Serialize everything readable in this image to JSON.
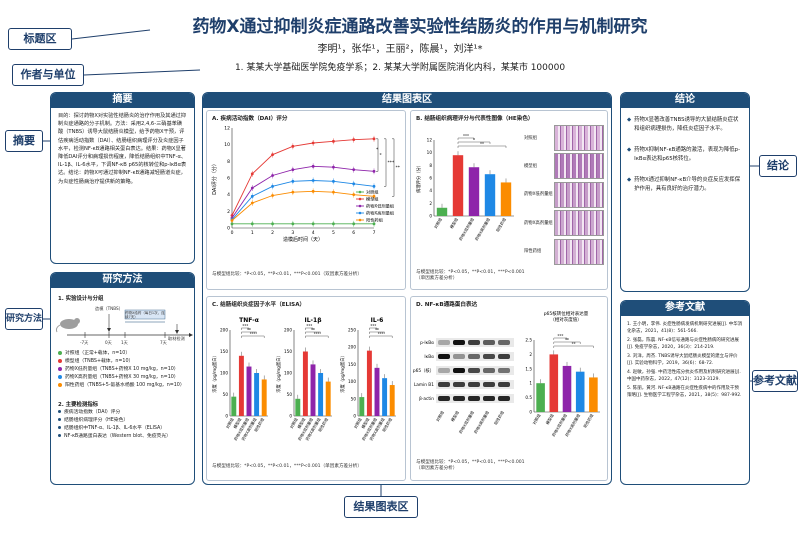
{
  "callouts": {
    "title_area": "标题区",
    "authors_area": "作者与单位",
    "abstract": "摘要",
    "methods": "研究方法",
    "results": "结果图表区",
    "conclusion": "结论",
    "references": "参考文献"
  },
  "title": "药物X通过抑制炎症通路改善实验性结肠炎的作用与机制研究",
  "authors": "李明¹，张华¹，王丽²，陈晨¹，刘洋¹*",
  "affiliations": "1. 某某大学基础医学院免疫学系；2. 某某大学附属医院消化内科，某某市 100000",
  "abstract": {
    "heading": "摘要",
    "text": "目的：探讨药物X对实验性结肠炎的治疗作用及其通过抑制炎症通路的分子机制。方法：采用2,4,6-三硝基苯磺酸（TNBS）诱导大鼠结肠炎模型，给予药物X干预，评估疾病活动指数（DAI）、结肠组织病理评分及炎症因子水平，检测NF-κB通路相关蛋白表达。结果：药物X显著降低DAI评分和病理损伤程度，降低结肠组织中TNF-α、IL-1β、IL-6水平，下调NF-κB p65的核转位和p-IκBα表达。结论：药物X可通过抑制NF-κB通路减轻肠道炎症，为炎症性肠病治疗提供新的策略。"
  },
  "methods": {
    "heading": "研究方法",
    "sub1": "1. 实验设计与分组",
    "timeline": {
      "t0": "-7天",
      "t1": "0天",
      "t2": "1天",
      "t3": "7天",
      "t4": "7天",
      "label_model": "造模（TNBS）",
      "label_drug": "药物X给药（每日1次，连续7天）",
      "label_end": "取材检测"
    },
    "groups": [
      {
        "label": "对照组（正常+载体，n=10）",
        "color": "#4caf50"
      },
      {
        "label": "模型组（TNBS+载体，n=10）",
        "color": "#e53935"
      },
      {
        "label": "药物X低剂量组（TNBS+药物X 10 mg/kg，n=10）",
        "color": "#8e24aa"
      },
      {
        "label": "药物X高剂量组（TNBS+药物X 30 mg/kg，n=10）",
        "color": "#1e88e5"
      },
      {
        "label": "阳性药组（TNBS+5-氨基水杨酸 100 mg/kg，n=10）",
        "color": "#fb8c00"
      }
    ],
    "sub2": "2. 主要检测指标",
    "indicators": [
      "疾病活动指数（DAI）评分",
      "结肠组织病理评分（HE染色）",
      "结肠组织中TNF-α、IL-1β、IL-6水平（ELISA）",
      "NF-κB通路蛋白表达（Western blot、免疫荧光）"
    ]
  },
  "results": {
    "heading": "结果图表区",
    "A": {
      "title": "A. 疾病活动指数（DAI）评分",
      "ylabel": "DAI评分（分）",
      "xlabel": "造模后时间（天）",
      "note": "与模型组比较：*P<0.05，**P<0.01，***P<0.001（双因素方差分析）",
      "sig": [
        "*",
        "*",
        "***",
        "**"
      ]
    },
    "B": {
      "title": "B. 结肠组织病理评分与代表性图像（HE染色）",
      "ylabel": "病理评分（分）",
      "note": "与模型组比较：*P<0.05，**P<0.01，***P<0.001\n（单因素方差分析）",
      "img_labels": [
        "对照组",
        "模型组",
        "药物X低剂量组",
        "药物X高剂量组",
        "阳性药组"
      ],
      "sig": [
        "***",
        "*",
        "**"
      ]
    },
    "C": {
      "title": "C. 结肠组织炎症因子水平（ELISA）",
      "panels": [
        "TNF-α",
        "IL-1β",
        "IL-6"
      ],
      "ylabel": "浓度（pg/mg蛋白）",
      "note": "与模型组比较：*P<0.05，**P<0.01，***P<0.001（单因素方差分析）"
    },
    "D": {
      "title": "D. NF-κB通路蛋白表达",
      "wb_labels": [
        "p-IκBα",
        "IκBα",
        "p65（核）",
        "Lamin B1",
        "β-actin"
      ],
      "bar_title": "p65核转位相对表达量\n（相对灰度值）",
      "note": "与模型组比较：*P<0.05，**P<0.01，***P<0.001\n（单因素方差分析）"
    }
  },
  "groups_short": [
    "对照组",
    "模型组",
    "药物X低剂量组",
    "药物X高剂量组",
    "阳性药组"
  ],
  "conclusion": {
    "heading": "结论",
    "items": [
      "药物X显著改善TNBS诱导的大鼠结肠炎症状和组织病理损伤，降低炎症因子水平。",
      "药物X抑制NF-κB通路的激活，表现为降低p-IκBα表达和p65核转位。",
      "药物X通过抑制NF-κB介导的炎症反应发挥保护作用，具有良好的治疗潜力。"
    ]
  },
  "references": {
    "heading": "参考文献",
    "items": [
      "1. 王小明，李伟. 炎症性肠病发病机制研究进展[J]. 中华消化杂志，2021，41(8)：561-566.",
      "2. 张磊，陈晨. NF-κB信号通路与炎症性肠病的研究进展[J]. 免疫学杂志，2020，36(3)：214-219.",
      "3. 刘洋，周杰. TNBS诱导大鼠结肠炎模型的建立与评价[J]. 实验动物科学，2019，36(6)：68-72.",
      "4. 赵敏，孙强. 中药活性成分抗炎作用及机制研究进展[J]. 中国中药杂志，2022，47(12)：3123-3129.",
      "5. 陈丽，黄河. NF-κB通路在炎症性疾病中的作用及干预策略[J]. 生物医学工程学杂志，2021，38(5)：987-992."
    ]
  },
  "chart_data": [
    {
      "type": "line",
      "title": "A. 疾病活动指数（DAI）评分",
      "xlabel": "造模后时间（天）",
      "ylabel": "DAI评分（分）",
      "x": [
        0,
        1,
        2,
        3,
        4,
        5,
        6,
        7
      ],
      "ylim": [
        0,
        12
      ],
      "series": [
        {
          "name": "对照组",
          "values": [
            0.5,
            0.5,
            0.5,
            0.5,
            0.5,
            0.5,
            0.5,
            0.5
          ]
        },
        {
          "name": "模型组",
          "values": [
            1.5,
            6.5,
            8.8,
            9.8,
            10.2,
            10.4,
            10.6,
            10.7
          ]
        },
        {
          "name": "药物X低剂量组",
          "values": [
            1.2,
            4.8,
            6.3,
            7.0,
            7.4,
            7.3,
            7.0,
            6.8
          ]
        },
        {
          "name": "药物X高剂量组",
          "values": [
            1.0,
            3.8,
            5.0,
            5.6,
            5.7,
            5.6,
            5.3,
            5.0
          ]
        },
        {
          "name": "阳性药组",
          "values": [
            0.9,
            3.0,
            3.9,
            4.3,
            4.4,
            4.3,
            4.0,
            3.8
          ]
        }
      ]
    },
    {
      "type": "bar",
      "title": "B. 病理评分",
      "categories": [
        "对照组",
        "模型组",
        "药物X低剂量组",
        "药物X高剂量组",
        "阳性药组"
      ],
      "values": [
        1.3,
        9.6,
        7.7,
        6.6,
        5.3
      ],
      "ylim": [
        0,
        12
      ]
    },
    {
      "type": "bar",
      "title": "TNF-α",
      "categories": [
        "对照组",
        "模型组",
        "药物X低剂量组",
        "药物X高剂量组",
        "阳性药组"
      ],
      "values": [
        45,
        140,
        115,
        100,
        85
      ],
      "ylim": [
        0,
        200
      ]
    },
    {
      "type": "bar",
      "title": "IL-1β",
      "categories": [
        "对照组",
        "模型组",
        "药物X低剂量组",
        "药物X高剂量组",
        "阳性药组"
      ],
      "values": [
        40,
        150,
        120,
        100,
        80
      ],
      "ylim": [
        0,
        200
      ]
    },
    {
      "type": "bar",
      "title": "IL-6",
      "categories": [
        "对照组",
        "模型组",
        "药物X低剂量组",
        "药物X高剂量组",
        "阳性药组"
      ],
      "values": [
        55,
        190,
        140,
        110,
        90
      ],
      "ylim": [
        0,
        250
      ]
    },
    {
      "type": "bar",
      "title": "p65核转位相对表达量",
      "categories": [
        "对照组",
        "模型组",
        "药物X低剂量组",
        "药物X高剂量组",
        "阳性药组"
      ],
      "values": [
        1.0,
        2.0,
        1.6,
        1.4,
        1.2
      ],
      "ylim": [
        0,
        2.5
      ]
    }
  ]
}
